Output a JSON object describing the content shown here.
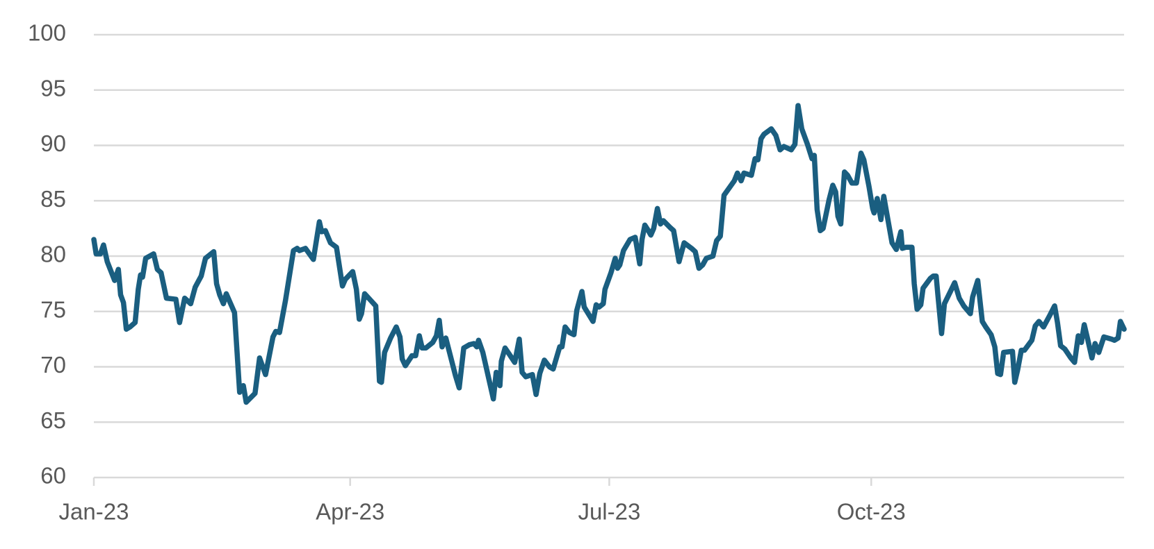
{
  "chart_data": {
    "type": "line",
    "color": "#1a5e80",
    "grid": true,
    "x": [
      0,
      0.8,
      2.3,
      3.4,
      4.7,
      7.3,
      8.6,
      9.4,
      10.4,
      11.4,
      12.7,
      14.5,
      15.6,
      16.4,
      17.1,
      18.2,
      21.0,
      22.3,
      23.6,
      25.5,
      28.8,
      30.1,
      31.9,
      34.0,
      35.6,
      37.7,
      39.2,
      42.1,
      43.1,
      44.2,
      45.5,
      46.5,
      49.4,
      51.2,
      52.5,
      53.5,
      56.6,
      58.2,
      60.3,
      62.9,
      63.9,
      65.2,
      67.3,
      70.1,
      71.4,
      72.2,
      74.3,
      77.1,
      79.2,
      80.0,
      81.3,
      83.1,
      85.2,
      87.3,
      88.3,
      90.9,
      92.2,
      93.2,
      94.0,
      95.1,
      99.0,
      100.3,
      101.0,
      102.1,
      104.2,
      106.2,
      107.5,
      108.3,
      109.4,
      111.7,
      113.0,
      114.3,
      115.3,
      116.6,
      119.0,
      120.3,
      121.3,
      122.3,
      123.6,
      127.0,
      128.3,
      129.9,
      131.9,
      133.5,
      134.5,
      135.1,
      136.6,
      140.3,
      141.3,
      142.6,
      143.1,
      144.4,
      146.0,
      147.8,
      149.4,
      150.4,
      151.7,
      154.0,
      155.3,
      156.6,
      158.2,
      160.0,
      161.3,
      163.6,
      164.4,
      165.5,
      167.0,
      168.6,
      169.6,
      171.4,
      172.2,
      175.3,
      176.4,
      177.4,
      178.9,
      179.5,
      181.6,
      183.1,
      183.9,
      184.7,
      186.0,
      188.3,
      190.1,
      191.7,
      192.5,
      193.5,
      194.5,
      195.6,
      196.6,
      197.9,
      199.0,
      200.0,
      202.3,
      203.6,
      205.5,
      207.3,
      209.9,
      211.2,
      212.5,
      213.8,
      215.1,
      217.4,
      218.7,
      220.0,
      221.3,
      224.9,
      226.0,
      227.3,
      228.3,
      230.9,
      232.2,
      233.2,
      234.3,
      235.3,
      237.9,
      239.5,
      241.0,
      242.3,
      244.9,
      246.2,
      247.3,
      248.6,
      250.6,
      252.2,
      253.0,
      254.0,
      255.1,
      256.1,
      258.2,
      259.5,
      260.5,
      261.3,
      262.3,
      263.6,
      264.7,
      266.2,
      267.8,
      269.4,
      270.4,
      272.2,
      273.5,
      274.0,
      275.1,
      276.4,
      277.4,
      280.3,
      281.8,
      283.4,
      283.9,
      285.2,
      287.3,
      288.1,
      289.1,
      290.4,
      291.2,
      293.8,
      294.8,
      295.8,
      296.4,
      297.7,
      298.7,
      300.8,
      302.3,
      303.9,
      305.5,
      307.8,
      308.6,
      310.4,
      312.0,
      313.2,
      315.1,
      316.4,
      317.4,
      318.4,
      319.5,
      322.6,
      323.4,
      324.4,
      325.7,
      326.8,
      329.4,
      330.6,
      331.9,
      333.5,
      335.6,
      337.4,
      338.4,
      339.5,
      341.0,
      343.1,
      344.4,
      345.7,
      346.8,
      347.8,
      349.0,
      350.5,
      351.6,
      352.9,
      354.7,
      357.4,
      358.4,
      359.7,
      360.5,
      361.8
    ],
    "values": [
      81.5,
      80.2,
      80.2,
      81,
      79.5,
      77.8,
      78.8,
      76.5,
      75.8,
      73.4,
      73.6,
      74,
      77,
      78.3,
      78.1,
      79.8,
      80.2,
      78.8,
      78.5,
      76.2,
      76.1,
      74,
      76.2,
      75.7,
      77.2,
      78.2,
      79.8,
      80.4,
      77.5,
      76.5,
      75.7,
      76.6,
      74.9,
      67.7,
      68.3,
      66.8,
      67.6,
      70.8,
      69.3,
      72.7,
      73.2,
      73.1,
      76,
      80.5,
      80.7,
      80.5,
      80.7,
      79.7,
      83.1,
      82.2,
      82.3,
      81.2,
      80.8,
      77.3,
      77.9,
      78.6,
      77,
      74.3,
      74.8,
      76.6,
      75.5,
      68.7,
      68.6,
      71.3,
      72.6,
      73.6,
      72.7,
      70.7,
      70.1,
      71,
      71,
      72.8,
      71.7,
      71.7,
      72.2,
      72.8,
      74.2,
      71.8,
      72.6,
      69.2,
      68.1,
      71.7,
      72,
      72.1,
      71.8,
      72.4,
      71.3,
      67.1,
      69.5,
      68.3,
      70.5,
      71.7,
      71.1,
      70.4,
      72.5,
      69.5,
      69.1,
      69.3,
      67.5,
      69.4,
      70.6,
      70,
      69.8,
      71.8,
      71.8,
      73.6,
      73.1,
      72.9,
      75.1,
      76.8,
      75.4,
      74.1,
      75.6,
      75.4,
      75.7,
      77,
      78.5,
      79.8,
      78.9,
      79.2,
      80.5,
      81.5,
      81.7,
      79.3,
      81.5,
      82.8,
      82.4,
      81.9,
      82.5,
      84.3,
      82.9,
      83.2,
      82.6,
      82.3,
      79.5,
      81.2,
      80.7,
      80.4,
      78.9,
      79.2,
      79.8,
      80,
      81.4,
      81.8,
      85.5,
      86.8,
      87.5,
      86.8,
      87.5,
      87.3,
      88.8,
      88.7,
      90.6,
      91,
      91.5,
      90.9,
      89.6,
      89.9,
      89.6,
      90.1,
      93.6,
      91.5,
      90.1,
      88.8,
      89.1,
      84.2,
      82.3,
      82.5,
      85.1,
      86.4,
      85.8,
      83.6,
      82.9,
      87.6,
      87.3,
      86.6,
      86.6,
      89.3,
      88.7,
      86.3,
      84.3,
      83.9,
      85.2,
      83.3,
      85.4,
      81.2,
      80.6,
      82.2,
      80.7,
      80.8,
      80.8,
      77.5,
      75.2,
      75.6,
      77.1,
      78,
      78.2,
      78.2,
      76.5,
      73,
      75.7,
      76.8,
      77.6,
      76.2,
      75.5,
      74.8,
      76.3,
      77.8,
      74.1,
      73.6,
      72.9,
      71.8,
      69.4,
      69.3,
      71.3,
      71.4,
      68.6,
      69.7,
      71.5,
      71.5,
      72.4,
      73.7,
      74.1,
      73.6,
      74.6,
      75.5,
      74,
      71.9,
      71.6,
      70.8,
      70.4,
      72.8,
      72.2,
      73.8,
      72.5,
      70.8,
      72.1,
      71.3,
      72.7,
      72.5,
      72.4,
      72.6,
      74.1,
      73.4
    ],
    "xlim": [
      0,
      361.8
    ],
    "xticks": [
      {
        "value": 0,
        "label": "Jan-23"
      },
      {
        "value": 90,
        "label": "Apr-23"
      },
      {
        "value": 181,
        "label": "Jul-23"
      },
      {
        "value": 273,
        "label": "Oct-23"
      }
    ],
    "ylim": [
      60,
      100
    ],
    "yticks": [
      60,
      65,
      70,
      75,
      80,
      85,
      90,
      95,
      100
    ]
  }
}
